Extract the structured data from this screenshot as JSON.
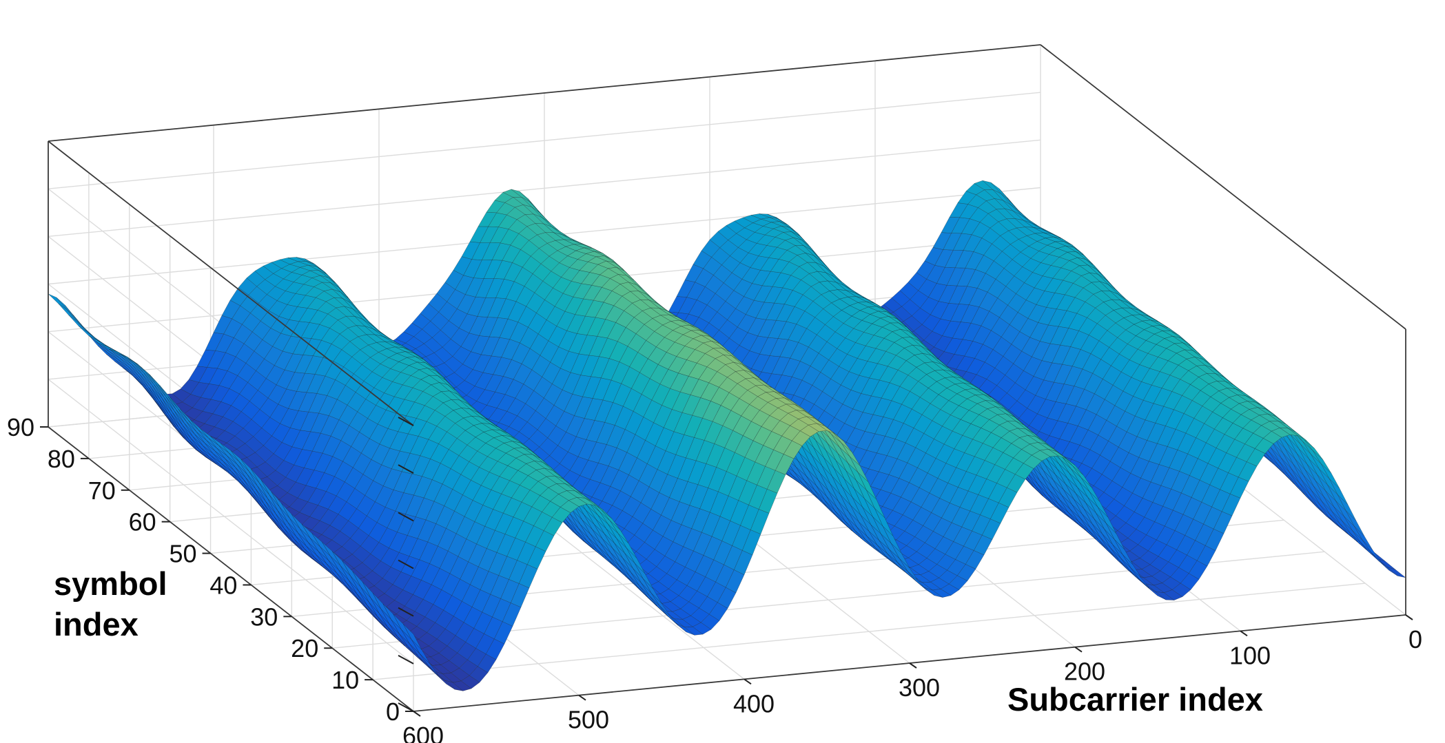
{
  "chart_data": {
    "type": "surface",
    "title": "",
    "xlabel": "Subcarrier index",
    "ylabel_lines": [
      "symbol",
      "index"
    ],
    "zlabel": "",
    "x_ticks": [
      "0",
      "100",
      "200",
      "300",
      "400",
      "500",
      "600"
    ],
    "y_ticks": [
      "0",
      "10",
      "20",
      "30",
      "40",
      "50",
      "60",
      "70",
      "80",
      "90"
    ],
    "xlim": [
      0,
      600
    ],
    "ylim": [
      0,
      90
    ],
    "zlim": [
      0,
      1
    ],
    "grid": true,
    "colormap": "parula",
    "description_values": {
      "x_ridges": [
        {
          "x": 525,
          "z": 0.56
        },
        {
          "x": 330,
          "z": 0.92
        },
        {
          "x": 210,
          "z": 0.72
        },
        {
          "x": 70,
          "z": 0.78
        }
      ],
      "x_valleys": [
        {
          "x": 440,
          "z": 0.05
        },
        {
          "x": 285,
          "z": 0.05
        },
        {
          "x": 150,
          "z": 0.08
        },
        {
          "x": 0,
          "z": 0.3
        }
      ]
    }
  }
}
